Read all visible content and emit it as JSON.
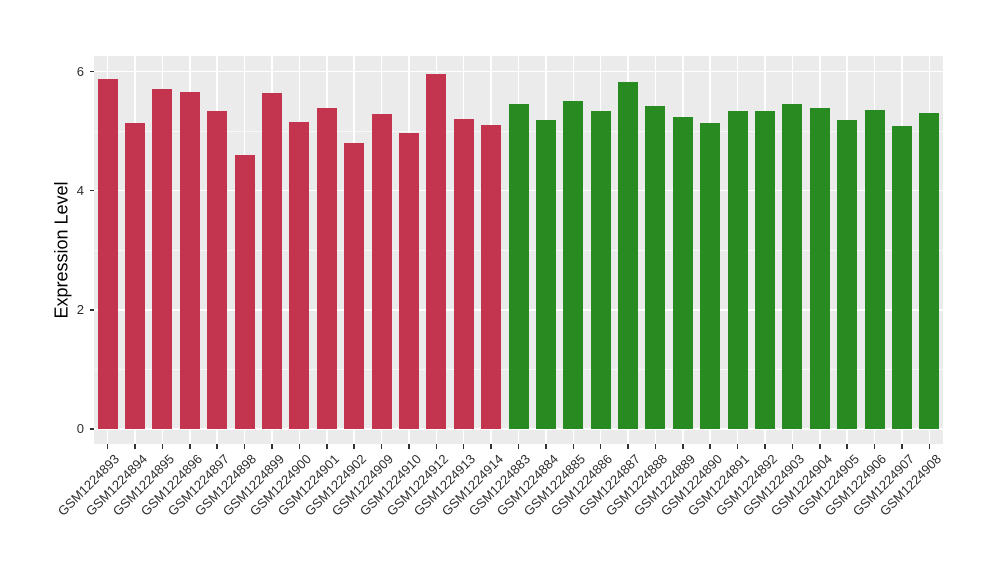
{
  "chart_data": {
    "type": "bar",
    "title": "",
    "xlabel": "",
    "ylabel": "Expression Level",
    "ylim": [
      0,
      6.25
    ],
    "yticks": [
      0,
      2,
      4,
      6
    ],
    "ytick_minor": [
      1,
      3,
      5
    ],
    "grid": true,
    "legend": false,
    "panel_background": "#EBEBEB",
    "gridline_color": "#FFFFFF",
    "palette": [
      "#C3344F",
      "#288B21"
    ],
    "categories": [
      "GSM1224893",
      "GSM1224894",
      "GSM1224895",
      "GSM1224896",
      "GSM1224897",
      "GSM1224898",
      "GSM1224899",
      "GSM1224900",
      "GSM1224901",
      "GSM1224902",
      "GSM1224909",
      "GSM1224910",
      "GSM1224912",
      "GSM1224913",
      "GSM1224914",
      "GSM1224883",
      "GSM1224884",
      "GSM1224885",
      "GSM1224886",
      "GSM1224887",
      "GSM1224888",
      "GSM1224889",
      "GSM1224890",
      "GSM1224891",
      "GSM1224892",
      "GSM1224903",
      "GSM1224904",
      "GSM1224905",
      "GSM1224906",
      "GSM1224907",
      "GSM1224908"
    ],
    "values": [
      5.87,
      5.14,
      5.7,
      5.66,
      5.34,
      4.6,
      5.64,
      5.15,
      5.38,
      4.8,
      5.29,
      4.97,
      5.95,
      5.21,
      5.11,
      5.46,
      5.19,
      5.51,
      5.33,
      5.83,
      5.42,
      5.24,
      5.14,
      5.34,
      5.33,
      5.46,
      5.39,
      5.19,
      5.36,
      5.09,
      5.31
    ],
    "bar_color_index": [
      0,
      0,
      0,
      0,
      0,
      0,
      0,
      0,
      0,
      0,
      0,
      0,
      0,
      0,
      0,
      1,
      1,
      1,
      1,
      1,
      1,
      1,
      1,
      1,
      1,
      1,
      1,
      1,
      1,
      1,
      1
    ]
  }
}
